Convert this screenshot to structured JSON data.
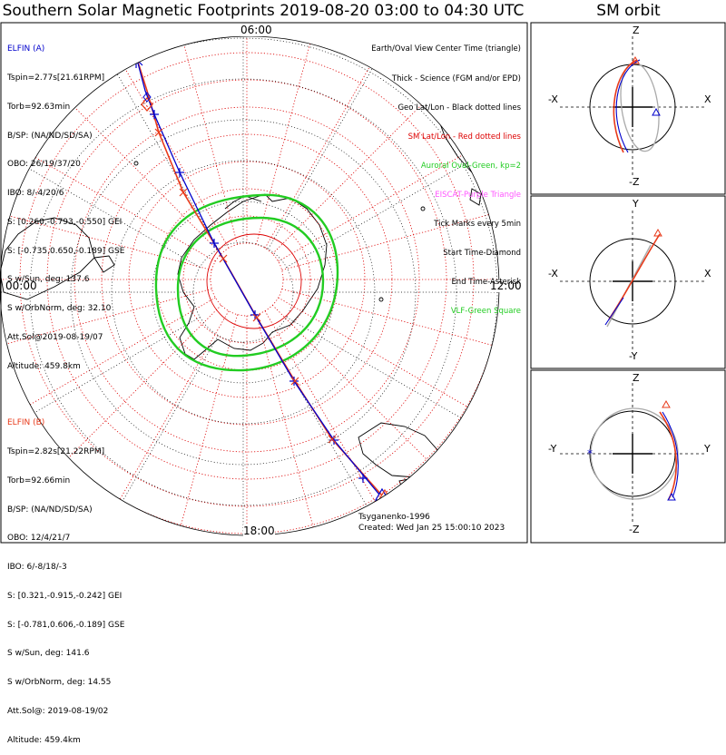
{
  "title": "Southern Solar Magnetic Footprints 2019-08-20 03:00 to 04:30 UTC",
  "orbit_title": "SM orbit",
  "colors": {
    "sc_a": "#0000cc",
    "sc_b": "#e83a1a",
    "oval": "#22cc22",
    "eiscat": "#ff55ff",
    "sm_grid": "#dd0000",
    "geo_grid": "#000000"
  },
  "elfin_a": {
    "name": "ELFIN (A)",
    "lines": [
      "Tspin=2.77s[21.61RPM]",
      "Torb=92.63min",
      "B/SP: (NA/ND/SD/SA)",
      "OBO: 26/19/37/20",
      "IBO: 8/-4/20/6",
      "S: [0.260,-0.793,-0.550] GEI",
      "S: [-0.735,0.650,-0.189] GSE",
      "S w/Sun, deg: 137.6",
      "S w/OrbNorm, deg: 32.10",
      "Att.Sol@2019-08-19/07",
      "Altitude: 459.8km"
    ]
  },
  "elfin_b": {
    "name": "ELFIN (B)",
    "lines": [
      "Tspin=2.82s[21.22RPM]",
      "Torb=92.66min",
      "B/SP: (NA/ND/SD/SA)",
      "OBO: 12/4/21/7",
      "IBO: 6/-8/18/-3",
      "S: [0.321,-0.915,-0.242] GEI",
      "S: [-0.781,0.606,-0.189] GSE",
      "S w/Sun, deg: 141.6",
      "S w/OrbNorm, deg: 14.55",
      "Att.Sol@: 2019-08-19/02",
      "Altitude: 459.4km"
    ]
  },
  "legend": [
    {
      "text": "Earth/Oval View Center Time (triangle)",
      "color": "#000000"
    },
    {
      "text": "Thick - Science (FGM and/or EPD)",
      "color": "#000000"
    },
    {
      "text": "Geo Lat/Lon - Black dotted lines",
      "color": "#000000"
    },
    {
      "text": "SM Lat/Lon - Red dotted lines",
      "color": "#dd0000"
    },
    {
      "text": "Auroral Oval-Green, kp=2",
      "color": "#22cc22"
    },
    {
      "text": "EISCAT-Purple Triangle",
      "color": "#ff55ff"
    },
    {
      "text": "Tick Marks every 5min",
      "color": "#000000"
    },
    {
      "text": "Start Time-Diamond",
      "color": "#000000"
    },
    {
      "text": "End Time-Asterisk",
      "color": "#000000"
    },
    {
      "text": "VLF-Green Square",
      "color": "#22cc22"
    }
  ],
  "clock_labels": {
    "top": "06:00",
    "left": "00:00",
    "right": "12:00",
    "bottom": "18:00"
  },
  "footer": {
    "model": "Tsyganenko-1996",
    "created": "Created: Wed Jan 25 15:00:10 2023"
  },
  "panels": [
    {
      "top": "Z",
      "bottom": "-Z",
      "left": "-X",
      "right": "X"
    },
    {
      "top": "Y",
      "bottom": "-Y",
      "left": "-X",
      "right": "X"
    },
    {
      "top": "Z",
      "bottom": "-Z",
      "left": "-Y",
      "right": "Y"
    }
  ],
  "chart_data": {
    "type": "polar_map",
    "title": "Southern Solar Magnetic Footprints 2019-08-20 03:00 to 04:30 UTC",
    "legend_position": "top-right",
    "grid": true
  }
}
